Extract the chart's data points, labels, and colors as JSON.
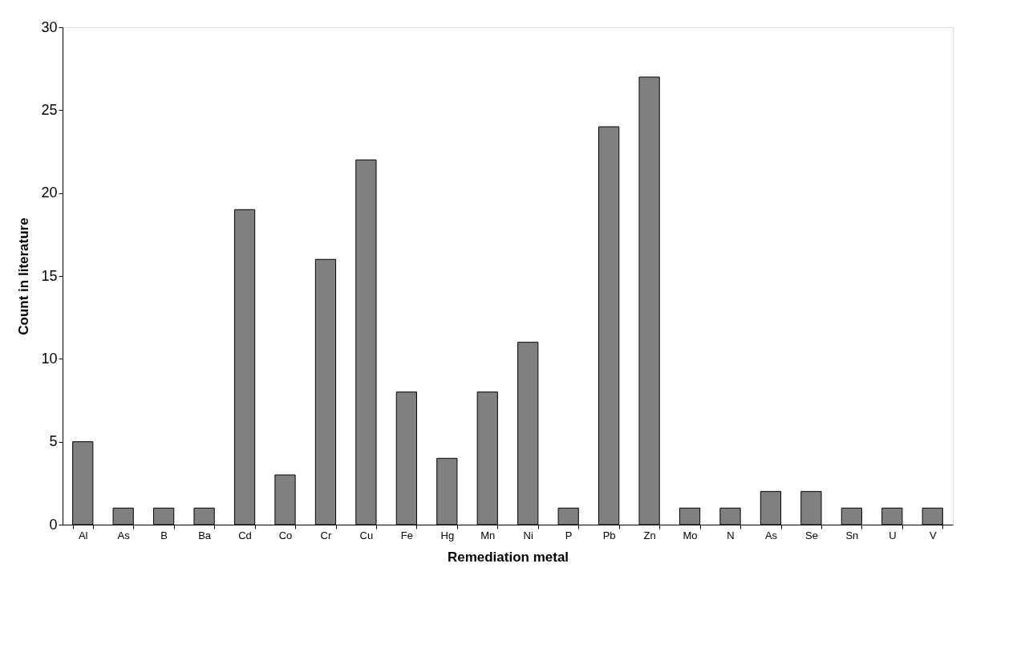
{
  "chart_data": {
    "type": "bar",
    "xlabel": "Remediation metal",
    "ylabel": "Count in literature",
    "categories": [
      "Al",
      "As",
      "B",
      "Ba",
      "Cd",
      "Co",
      "Cr",
      "Cu",
      "Fe",
      "Hg",
      "Mn",
      "Ni",
      "P",
      "Pb",
      "Zn",
      "Mo",
      "N",
      "As",
      "Se",
      "Sn",
      "U",
      "V"
    ],
    "values": [
      5,
      1,
      1,
      1,
      19,
      3,
      16,
      22,
      8,
      4,
      8,
      11,
      1,
      24,
      27,
      1,
      1,
      2,
      2,
      1,
      1,
      1
    ],
    "color": "#808080",
    "ylim": [
      0,
      30
    ],
    "yticks": [
      0,
      5,
      10,
      15,
      20,
      25,
      30
    ],
    "grid": false
  }
}
